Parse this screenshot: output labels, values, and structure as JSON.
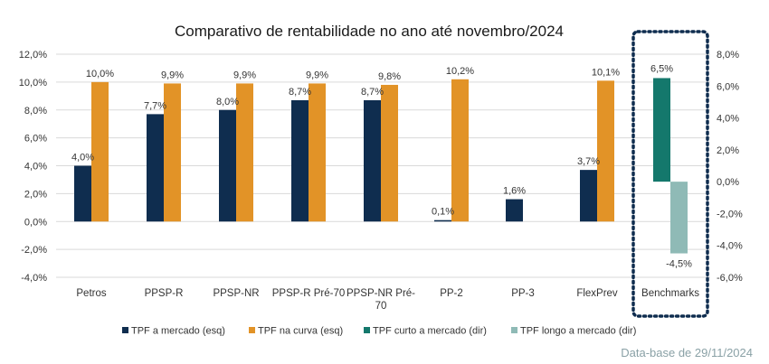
{
  "chart_data": {
    "type": "bar",
    "title": "Comparativo de rentabilidade no ano até novembro/2024",
    "categories": [
      "Petros",
      "PPSP-R",
      "PPSP-NR",
      "PPSP-R Pré-70",
      "PPSP-NR Pré-70",
      "PP-2",
      "PP-3",
      "FlexPrev"
    ],
    "category_lines": [
      [
        "Petros"
      ],
      [
        "PPSP-R"
      ],
      [
        "PPSP-NR"
      ],
      [
        "PPSP-R Pré-70"
      ],
      [
        "PPSP-NR Pré-",
        "70"
      ],
      [
        "PP-2"
      ],
      [
        "PP-3"
      ],
      [
        "FlexPrev"
      ]
    ],
    "series": [
      {
        "name": "TPF a mercado (esq)",
        "color": "#0f2d4f",
        "axis": "left",
        "values": [
          4.0,
          7.7,
          8.0,
          8.7,
          8.7,
          0.1,
          1.6,
          3.7
        ],
        "labels": [
          "4,0%",
          "7,7%",
          "8,0%",
          "8,7%",
          "8,7%",
          "0,1%",
          "1,6%",
          "3,7%"
        ]
      },
      {
        "name": "TPF na curva (esq)",
        "color": "#e29327",
        "axis": "left",
        "values": [
          10.0,
          9.9,
          9.9,
          9.9,
          9.8,
          10.2,
          null,
          10.1
        ],
        "labels": [
          "10,0%",
          "9,9%",
          "9,9%",
          "9,9%",
          "9,8%",
          "10,2%",
          "",
          "10,1%"
        ]
      }
    ],
    "benchmarks": {
      "category": "Benchmarks",
      "series": [
        {
          "name": "TPF curto a mercado (dir)",
          "color": "#14786c",
          "axis": "right",
          "value": 6.5,
          "label": "6,5%"
        },
        {
          "name": "TPF longo a mercado (dir)",
          "color": "#8fbab6",
          "axis": "right",
          "value": -4.5,
          "label": "-4,5%"
        }
      ]
    },
    "y_left": {
      "min": -4,
      "max": 12,
      "step": 2,
      "ticks": [
        "-4,0%",
        "-2,0%",
        "0,0%",
        "2,0%",
        "4,0%",
        "6,0%",
        "8,0%",
        "10,0%",
        "12,0%"
      ]
    },
    "y_right": {
      "min": -6,
      "max": 8,
      "step": 2,
      "ticks": [
        "-6,0%",
        "-4,0%",
        "-2,0%",
        "0,0%",
        "2,0%",
        "4,0%",
        "6,0%",
        "8,0%"
      ]
    },
    "grid": true,
    "legend_position": "bottom",
    "footnote": "Data-base de 29/11/2024",
    "highlight_box_color": "#0f2d4f"
  }
}
